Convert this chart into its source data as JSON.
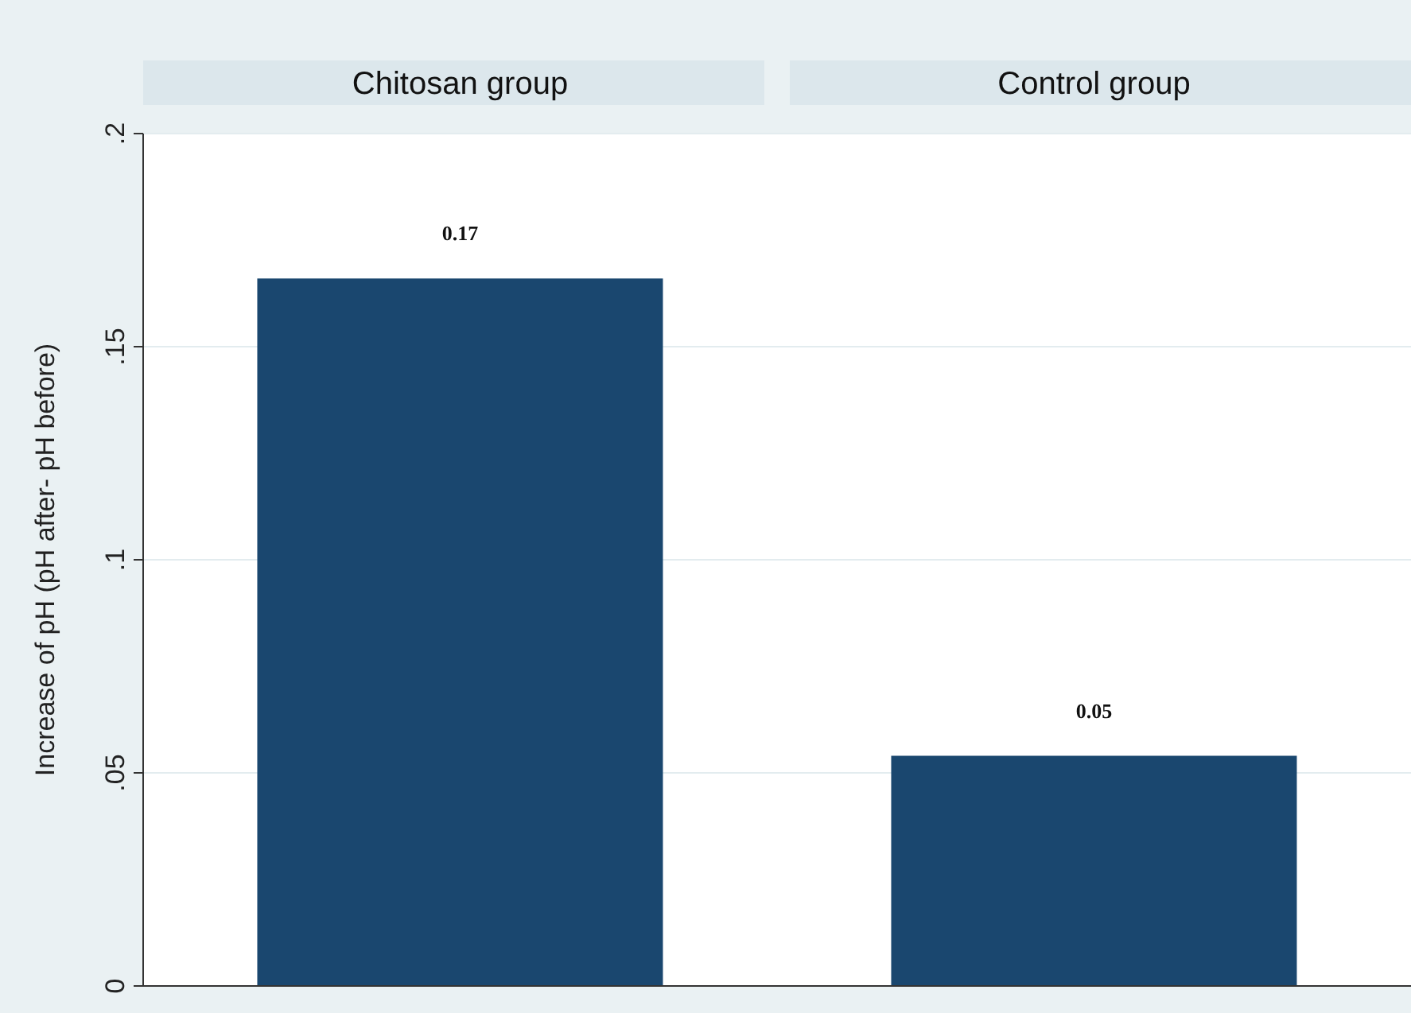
{
  "chart_data": {
    "type": "bar",
    "ylabel": "Increase of pH (pH after- pH before)",
    "categories": [
      "Chitosan group",
      "Control group"
    ],
    "values": [
      0.166,
      0.054
    ],
    "value_labels": [
      "0.17",
      "0.05"
    ],
    "color": "#1a476f",
    "ylim": [
      0,
      0.2
    ],
    "yticks": [
      0,
      {
        "value": 0.05,
        "label": ".05"
      },
      {
        "value": 0.1,
        "label": ".1"
      },
      {
        "value": 0.15,
        "label": ".15"
      },
      {
        "value": 0.2,
        "label": ".2"
      }
    ],
    "grid": "y"
  }
}
